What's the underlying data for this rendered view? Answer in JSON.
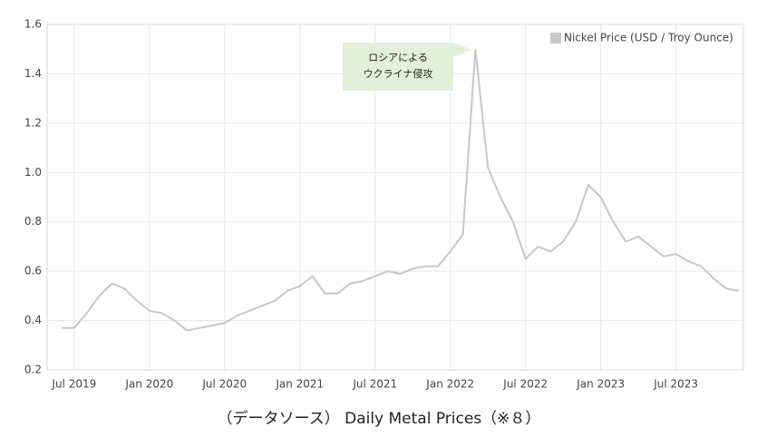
{
  "chart_data": {
    "type": "line",
    "legend": "Nickel Price (USD / Troy Ounce)",
    "annotation": [
      "ロシアによる",
      "ウクライナ侵攻"
    ],
    "source": "（データソース） Daily Metal Prices（※８）",
    "x": [
      "Jun 2019",
      "Jul 2019",
      "Aug 2019",
      "Sep 2019",
      "Oct 2019",
      "Nov 2019",
      "Dec 2019",
      "Jan 2020",
      "Feb 2020",
      "Mar 2020",
      "Apr 2020",
      "May 2020",
      "Jun 2020",
      "Jul 2020",
      "Aug 2020",
      "Sep 2020",
      "Oct 2020",
      "Nov 2020",
      "Dec 2020",
      "Jan 2021",
      "Feb 2021",
      "Mar 2021",
      "Apr 2021",
      "May 2021",
      "Jun 2021",
      "Jul 2021",
      "Aug 2021",
      "Sep 2021",
      "Oct 2021",
      "Nov 2021",
      "Dec 2021",
      "Jan 2022",
      "Feb 2022",
      "Mar 2022",
      "Apr 2022",
      "May 2022",
      "Jun 2022",
      "Jul 2022",
      "Aug 2022",
      "Sep 2022",
      "Oct 2022",
      "Nov 2022",
      "Dec 2022",
      "Jan 2023",
      "Feb 2023",
      "Mar 2023",
      "Apr 2023",
      "May 2023",
      "Jun 2023",
      "Jul 2023",
      "Aug 2023",
      "Sep 2023",
      "Oct 2023",
      "Nov 2023",
      "Dec 2023"
    ],
    "series": [
      {
        "name": "Nickel Price (USD / Troy Ounce)",
        "color": "#c8c8c8",
        "values": [
          0.37,
          0.37,
          0.43,
          0.5,
          0.55,
          0.53,
          0.48,
          0.44,
          0.43,
          0.4,
          0.36,
          0.37,
          0.38,
          0.39,
          0.42,
          0.44,
          0.46,
          0.48,
          0.52,
          0.54,
          0.58,
          0.51,
          0.51,
          0.55,
          0.56,
          0.58,
          0.6,
          0.59,
          0.61,
          0.62,
          0.62,
          0.68,
          0.75,
          1.5,
          1.02,
          0.9,
          0.8,
          0.65,
          0.7,
          0.68,
          0.72,
          0.8,
          0.95,
          0.9,
          0.8,
          0.72,
          0.74,
          0.7,
          0.66,
          0.67,
          0.64,
          0.62,
          0.57,
          0.53,
          0.52
        ]
      }
    ],
    "xticks": [
      "Jul 2019",
      "Jan 2020",
      "Jul 2020",
      "Jan 2021",
      "Jul 2021",
      "Jan 2022",
      "Jul 2022",
      "Jan 2023",
      "Jul 2023"
    ],
    "ylim": [
      0.2,
      1.6
    ],
    "yticks": [
      0.2,
      0.4,
      0.6,
      0.8,
      {
        "value": 1,
        "label": "1.0"
      },
      1.2,
      1.4,
      1.6
    ],
    "grid": true
  }
}
